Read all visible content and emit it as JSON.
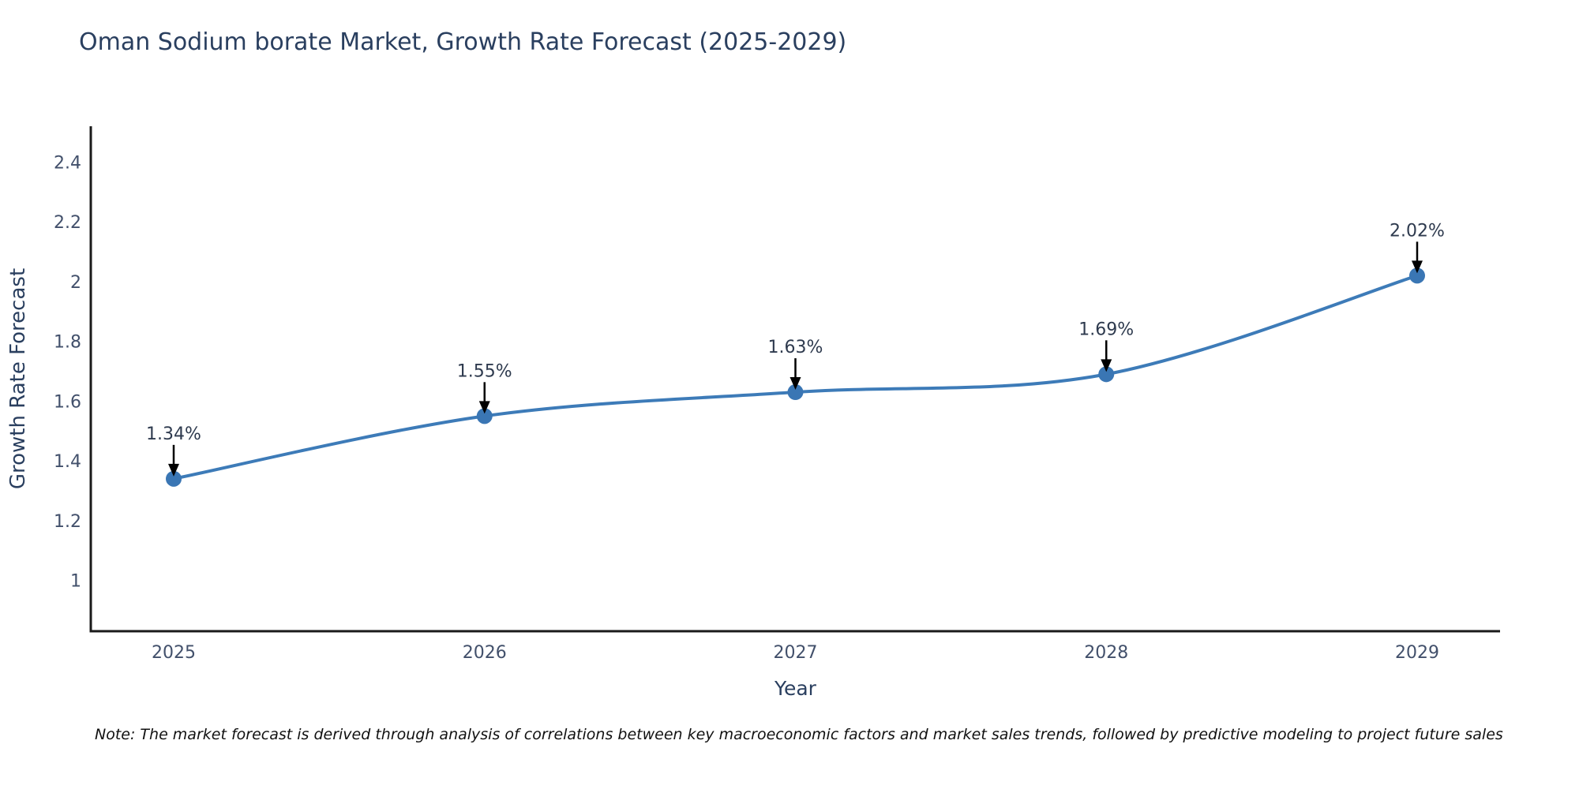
{
  "page": {
    "note": "Note: The market forecast is derived through analysis of correlations between key macroeconomic factors and market sales trends, followed by predictive modeling to project future sales"
  },
  "chart_data": {
    "type": "line",
    "title": "Oman Sodium borate Market, Growth Rate Forecast (2025-2029)",
    "x": [
      "2025",
      "2026",
      "2027",
      "2028",
      "2029"
    ],
    "y": [
      1.34,
      1.55,
      1.63,
      1.69,
      2.02
    ],
    "point_labels": [
      "1.34%",
      "1.55%",
      "1.63%",
      "1.69%",
      "2.02%"
    ],
    "xlabel": "Year",
    "ylabel": "Growth Rate Forecast",
    "yticks": [
      2.4,
      2.2,
      2,
      1.8,
      1.6,
      1.4,
      1.2,
      1
    ],
    "ylim": [
      0.83,
      2.52
    ],
    "grid": false,
    "legend": "none",
    "line_shape": "spline",
    "annotations_have_arrows": true,
    "colors": {
      "line": "#3d7bb8",
      "marker": "#3a76b4",
      "annotation_text": "#2e3a4e",
      "annotation_arrow": "#000000",
      "title_text": "#2a3f5f",
      "tick_text": "#42506b",
      "axis_line": "#1a1a1a",
      "background": "#ffffff"
    }
  }
}
